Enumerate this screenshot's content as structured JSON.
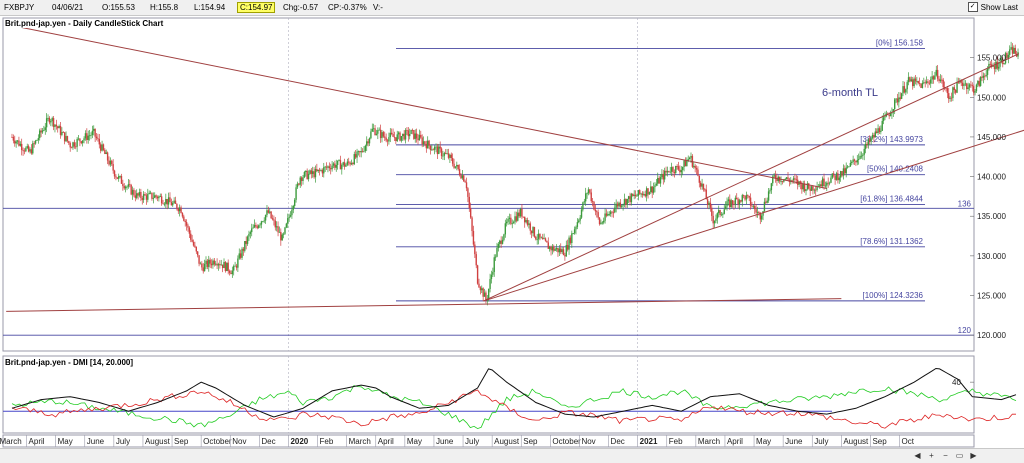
{
  "header": {
    "symbol": "FXBPJY",
    "date": "04/06/21",
    "open": "O:155.53",
    "high": "H:155.8",
    "low": "L:154.94",
    "close": "C:154.97",
    "change": "Chg:-0.57",
    "change_pct": "CP:-0.37%",
    "volume": "V:-",
    "show_last_label": "Show Last"
  },
  "main_title": "Brit.pnd-jap.yen - Daily CandleStick Chart",
  "dmi_title": "Brit.pnd-jap.yen - DMI [14, 20.000]",
  "trendline_label": "6-month TL",
  "fib_levels": [
    {
      "label": "[0%] 156.158",
      "value": 156.158
    },
    {
      "label": "[38.2%] 143.9973",
      "value": 143.9973
    },
    {
      "label": "[50%] 140.2408",
      "value": 140.2408
    },
    {
      "label": "[61.8%] 136.4844",
      "value": 136.4844
    },
    {
      "label": "[78.6%] 131.1362",
      "value": 131.1362
    },
    {
      "label": "[100%] 124.3236",
      "value": 124.3236
    }
  ],
  "horizontal_markers": [
    {
      "label": "136",
      "value": 136
    },
    {
      "label": "120",
      "value": 120
    }
  ],
  "colors": {
    "candle_up": "#3c9a3c",
    "candle_down": "#d04040",
    "fib": "#4646a0",
    "trend": "#a04040",
    "plus_di": "#22cc22",
    "minus_di": "#dd2222",
    "adx": "#111111",
    "threshold": "#4646c8"
  },
  "chart_data": [
    {
      "type": "candlestick",
      "title": "Brit.pnd-jap.yen - Daily CandleStick Chart",
      "ylim": [
        118,
        160
      ],
      "yticks": [
        120.0,
        125.0,
        130.0,
        135.0,
        140.0,
        145.0,
        150.0,
        155.0
      ],
      "ytick_labels": [
        "120.000",
        "125.000",
        "130.000",
        "135.000",
        "140.000",
        "145.000",
        "150.000",
        "155.000"
      ],
      "x_labels": [
        "March",
        "April",
        "May",
        "June",
        "July",
        "August",
        "Sep",
        "October",
        "Nov",
        "Dec",
        "2020",
        "Feb",
        "March",
        "April",
        "May",
        "June",
        "July",
        "August",
        "Sep",
        "October",
        "Nov",
        "Dec",
        "2021",
        "Feb",
        "March",
        "April",
        "May",
        "June",
        "July",
        "August",
        "Sep",
        "Oct"
      ],
      "x_label_bold": [
        "2020",
        "2021"
      ],
      "x_range_months": [
        0,
        32
      ],
      "close_keypoints": [
        [
          0.0,
          145.0
        ],
        [
          0.6,
          143.0
        ],
        [
          1.3,
          147.5
        ],
        [
          2.0,
          144.0
        ],
        [
          2.8,
          145.5
        ],
        [
          3.6,
          140.0
        ],
        [
          4.3,
          137.5
        ],
        [
          5.0,
          137.5
        ],
        [
          5.8,
          136.0
        ],
        [
          6.5,
          128.5
        ],
        [
          7.0,
          129.5
        ],
        [
          7.6,
          128.0
        ],
        [
          8.2,
          133.0
        ],
        [
          8.8,
          135.5
        ],
        [
          9.3,
          132.0
        ],
        [
          9.9,
          140.0
        ],
        [
          10.5,
          140.5
        ],
        [
          11.0,
          141.5
        ],
        [
          11.5,
          141.5
        ],
        [
          12.0,
          143.0
        ],
        [
          12.4,
          146.0
        ],
        [
          12.8,
          145.0
        ],
        [
          13.3,
          145.0
        ],
        [
          13.7,
          145.5
        ],
        [
          14.3,
          144.0
        ],
        [
          15.0,
          142.5
        ],
        [
          15.6,
          139.5
        ],
        [
          16.0,
          127.0
        ],
        [
          16.3,
          124.3
        ],
        [
          16.6,
          130.0
        ],
        [
          17.0,
          134.0
        ],
        [
          17.5,
          135.5
        ],
        [
          18.0,
          132.5
        ],
        [
          18.5,
          131.0
        ],
        [
          19.0,
          130.5
        ],
        [
          19.5,
          135.0
        ],
        [
          19.8,
          138.5
        ],
        [
          20.2,
          134.0
        ],
        [
          20.8,
          136.5
        ],
        [
          21.4,
          137.5
        ],
        [
          22.0,
          138.5
        ],
        [
          22.6,
          141.0
        ],
        [
          23.0,
          141.0
        ],
        [
          23.3,
          142.5
        ],
        [
          23.7,
          139.0
        ],
        [
          24.1,
          134.5
        ],
        [
          24.6,
          136.5
        ],
        [
          25.2,
          137.5
        ],
        [
          25.7,
          135.0
        ],
        [
          26.2,
          140.0
        ],
        [
          26.8,
          139.5
        ],
        [
          27.4,
          138.5
        ],
        [
          28.0,
          139.5
        ],
        [
          28.6,
          140.5
        ],
        [
          29.2,
          143.0
        ],
        [
          29.8,
          146.0
        ],
        [
          30.3,
          149.0
        ],
        [
          30.8,
          152.0
        ],
        [
          31.3,
          151.5
        ],
        [
          31.8,
          153.0
        ],
        [
          32.2,
          150.0
        ],
        [
          32.6,
          152.0
        ],
        [
          33.1,
          151.0
        ],
        [
          33.5,
          153.5
        ],
        [
          34.0,
          154.5
        ],
        [
          34.4,
          156.0
        ],
        [
          34.6,
          155.0
        ]
      ],
      "trendlines": [
        {
          "name": "6-month TL",
          "from": [
            16.2,
            124.3
          ],
          "to": [
            34.6,
            155.5
          ]
        },
        {
          "from": [
            16.2,
            124.3
          ],
          "to": [
            38.8,
            150.5
          ]
        },
        {
          "from": [
            -0.2,
            159.2
          ],
          "to": [
            28.0,
            138.5
          ]
        },
        {
          "from": [
            -0.2,
            123.0
          ],
          "to": [
            28.5,
            124.6
          ]
        }
      ]
    },
    {
      "type": "line",
      "title": "Brit.pnd-jap.yen - DMI [14, 20.000]",
      "ylim": [
        5,
        58
      ],
      "yticks": [
        40
      ],
      "threshold": 20,
      "series": [
        {
          "role": "+DI",
          "keypoints": [
            [
              0,
              24
            ],
            [
              1.5,
              27
            ],
            [
              3,
              22
            ],
            [
              4.5,
              17
            ],
            [
              5.5,
              14
            ],
            [
              6.5,
              10
            ],
            [
              7.5,
              17
            ],
            [
              8.5,
              28
            ],
            [
              9.5,
              33
            ],
            [
              10,
              26
            ],
            [
              11,
              30
            ],
            [
              12,
              38
            ],
            [
              13,
              30
            ],
            [
              14,
              26
            ],
            [
              15,
              18
            ],
            [
              16,
              8
            ],
            [
              17,
              28
            ],
            [
              18,
              34
            ],
            [
              19,
              22
            ],
            [
              20,
              28
            ],
            [
              21,
              34
            ],
            [
              22,
              30
            ],
            [
              23,
              34
            ],
            [
              24,
              22
            ],
            [
              25,
              24
            ],
            [
              26,
              26
            ],
            [
              27,
              28
            ],
            [
              28,
              30
            ],
            [
              29,
              34
            ],
            [
              30,
              36
            ],
            [
              31,
              32
            ],
            [
              32,
              28
            ],
            [
              33,
              34
            ],
            [
              34,
              30
            ],
            [
              34.6,
              28
            ]
          ]
        },
        {
          "role": "-DI",
          "keypoints": [
            [
              0,
              22
            ],
            [
              1.5,
              18
            ],
            [
              3,
              22
            ],
            [
              4.5,
              26
            ],
            [
              5.5,
              30
            ],
            [
              6.5,
              34
            ],
            [
              7.5,
              26
            ],
            [
              8.5,
              16
            ],
            [
              9.5,
              14
            ],
            [
              10,
              18
            ],
            [
              11,
              16
            ],
            [
              12,
              11
            ],
            [
              13,
              16
            ],
            [
              14,
              18
            ],
            [
              15,
              26
            ],
            [
              16,
              34
            ],
            [
              17,
              22
            ],
            [
              18,
              13
            ],
            [
              19,
              19
            ],
            [
              20,
              17
            ],
            [
              21,
              13
            ],
            [
              22,
              15
            ],
            [
              23,
              13
            ],
            [
              24,
              24
            ],
            [
              25,
              20
            ],
            [
              26,
              19
            ],
            [
              27,
              19
            ],
            [
              28,
              16
            ],
            [
              29,
              12
            ],
            [
              30,
              10
            ],
            [
              31,
              14
            ],
            [
              32,
              18
            ],
            [
              33,
              14
            ],
            [
              34,
              16
            ],
            [
              34.6,
              17
            ]
          ]
        },
        {
          "role": "ADX",
          "keypoints": [
            [
              0,
              22
            ],
            [
              1,
              28
            ],
            [
              2,
              30
            ],
            [
              3,
              26
            ],
            [
              4,
              20
            ],
            [
              5,
              26
            ],
            [
              6,
              34
            ],
            [
              6.5,
              40
            ],
            [
              7,
              36
            ],
            [
              8,
              24
            ],
            [
              9,
              16
            ],
            [
              10,
              22
            ],
            [
              11,
              34
            ],
            [
              12,
              38
            ],
            [
              12.5,
              36
            ],
            [
              13,
              30
            ],
            [
              14,
              22
            ],
            [
              15,
              24
            ],
            [
              16,
              36
            ],
            [
              16.4,
              50
            ],
            [
              17,
              40
            ],
            [
              18,
              26
            ],
            [
              19,
              18
            ],
            [
              20,
              16
            ],
            [
              21,
              20
            ],
            [
              22,
              24
            ],
            [
              23,
              20
            ],
            [
              24,
              30
            ],
            [
              25,
              32
            ],
            [
              26,
              24
            ],
            [
              27,
              20
            ],
            [
              28,
              18
            ],
            [
              29,
              22
            ],
            [
              30,
              30
            ],
            [
              31,
              40
            ],
            [
              31.8,
              50
            ],
            [
              32.5,
              42
            ],
            [
              33,
              30
            ],
            [
              34,
              28
            ],
            [
              34.6,
              32
            ]
          ]
        }
      ]
    }
  ]
}
